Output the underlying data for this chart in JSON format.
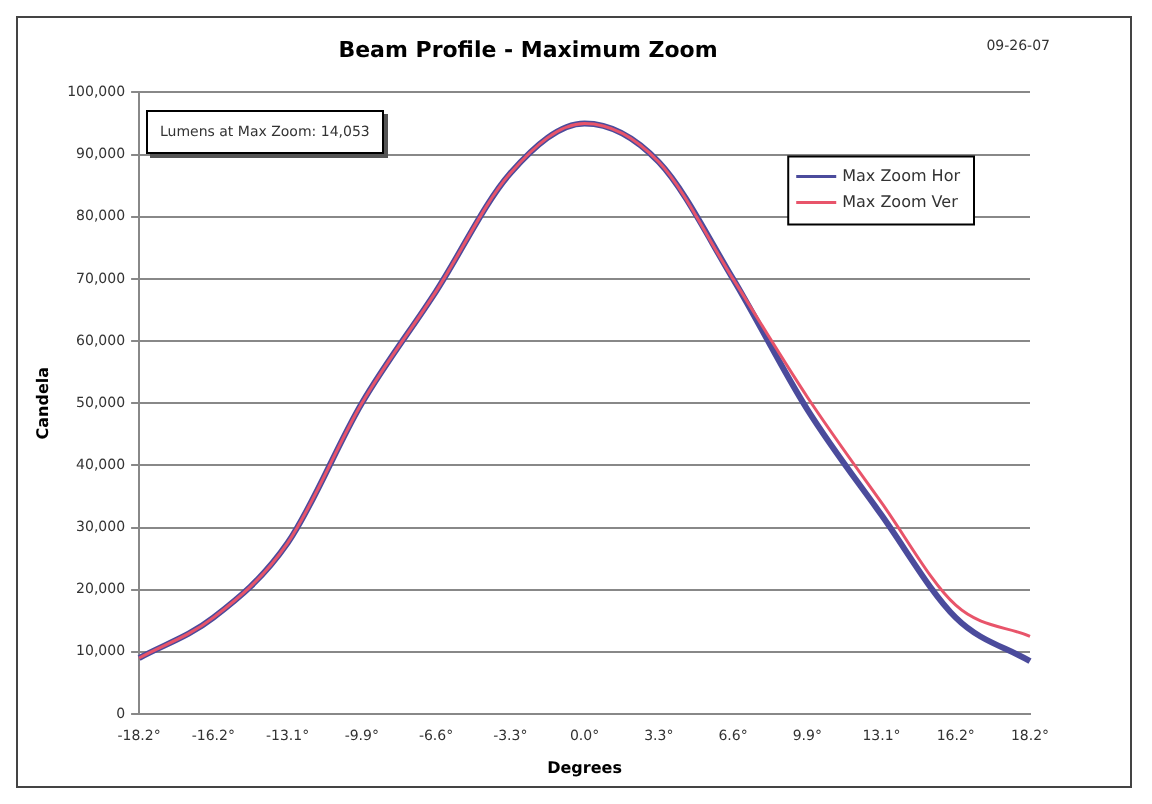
{
  "chart_data": {
    "type": "line",
    "title": "Beam Profile - Maximum Zoom",
    "xlabel": "Degrees",
    "ylabel": "Candela",
    "annotations": [
      "09-26-07",
      "Lumens at Max Zoom: 14,053"
    ],
    "categories": [
      "-18.2°",
      "-16.2°",
      "-13.1°",
      "-9.9°",
      "-6.6°",
      "-3.3°",
      "0.0°",
      "3.3°",
      "6.6°",
      "9.9°",
      "13.1°",
      "16.2°",
      "18.2°"
    ],
    "series": [
      {
        "name": "Max Zoom Hor",
        "color": "#4b4b9c",
        "values": [
          9000,
          15500,
          27500,
          50000,
          68000,
          87000,
          95000,
          88800,
          70000,
          49000,
          32000,
          15500,
          8500
        ]
      },
      {
        "name": "Max Zoom Ver",
        "color": "#e8546a",
        "values": [
          9000,
          15500,
          27500,
          50000,
          68000,
          87000,
          95000,
          88800,
          70000,
          51000,
          34000,
          17500,
          12500
        ]
      }
    ],
    "ylim": [
      0,
      100000
    ],
    "yticks": [
      0,
      {
        "value": 10000,
        "label": "10,000"
      },
      {
        "value": 20000,
        "label": "20,000"
      },
      {
        "value": 30000,
        "label": "30,000"
      },
      {
        "value": 40000,
        "label": "40,000"
      },
      {
        "value": 50000,
        "label": "50,000"
      },
      {
        "value": 60000,
        "label": "60,000"
      },
      {
        "value": 70000,
        "label": "70,000"
      },
      {
        "value": 80000,
        "label": "80,000"
      },
      {
        "value": 90000,
        "label": "90,000"
      },
      {
        "value": 100000,
        "label": "100,000"
      }
    ],
    "grid": "y",
    "legend": "top right",
    "marker": "none",
    "line_style": "solid"
  }
}
